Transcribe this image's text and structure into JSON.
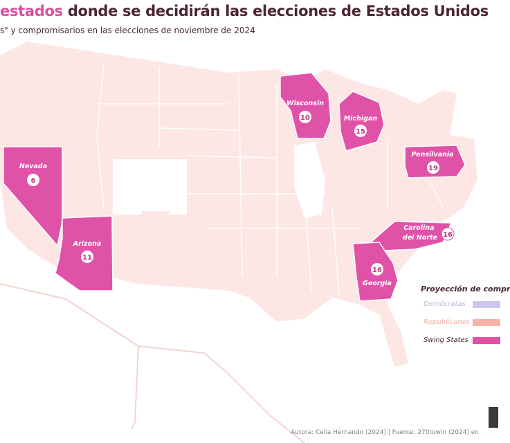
{
  "header": {
    "title_highlight": "estados",
    "title_rest": "donde se decidirán las elecciones de Estados Unidos",
    "subtitle": "s\" y compromisarios en las elecciones de noviembre de 2024"
  },
  "map": {
    "swing_states": [
      {
        "name": "Nevada",
        "electoral_votes": "6"
      },
      {
        "name": "Arizona",
        "electoral_votes": "11"
      },
      {
        "name": "Wisconsin",
        "electoral_votes": "10"
      },
      {
        "name": "Michigan",
        "electoral_votes": "15"
      },
      {
        "name": "Pensilvania",
        "electoral_votes": "19"
      },
      {
        "name": "Carolina del Norte",
        "electoral_votes": "16"
      },
      {
        "name": "Georgia",
        "electoral_votes": "16"
      }
    ]
  },
  "legend": {
    "title": "Proyección de compr",
    "items": [
      {
        "label": "Demócratas",
        "color": "#c9c6ef"
      },
      {
        "label": "Republicanos",
        "color": "#f6b4a8"
      },
      {
        "label": "Swing States",
        "color": "#e052a8"
      }
    ]
  },
  "footer": {
    "credit": "Autora: Celia Hernando (2024) | Fuente: 270towin (2024) en"
  },
  "colors": {
    "swing": "#e052a8",
    "republican_base": "#fde7e4",
    "border": "#ffffff",
    "title_accent": "#d94fa0",
    "title_text": "#4a2630"
  }
}
